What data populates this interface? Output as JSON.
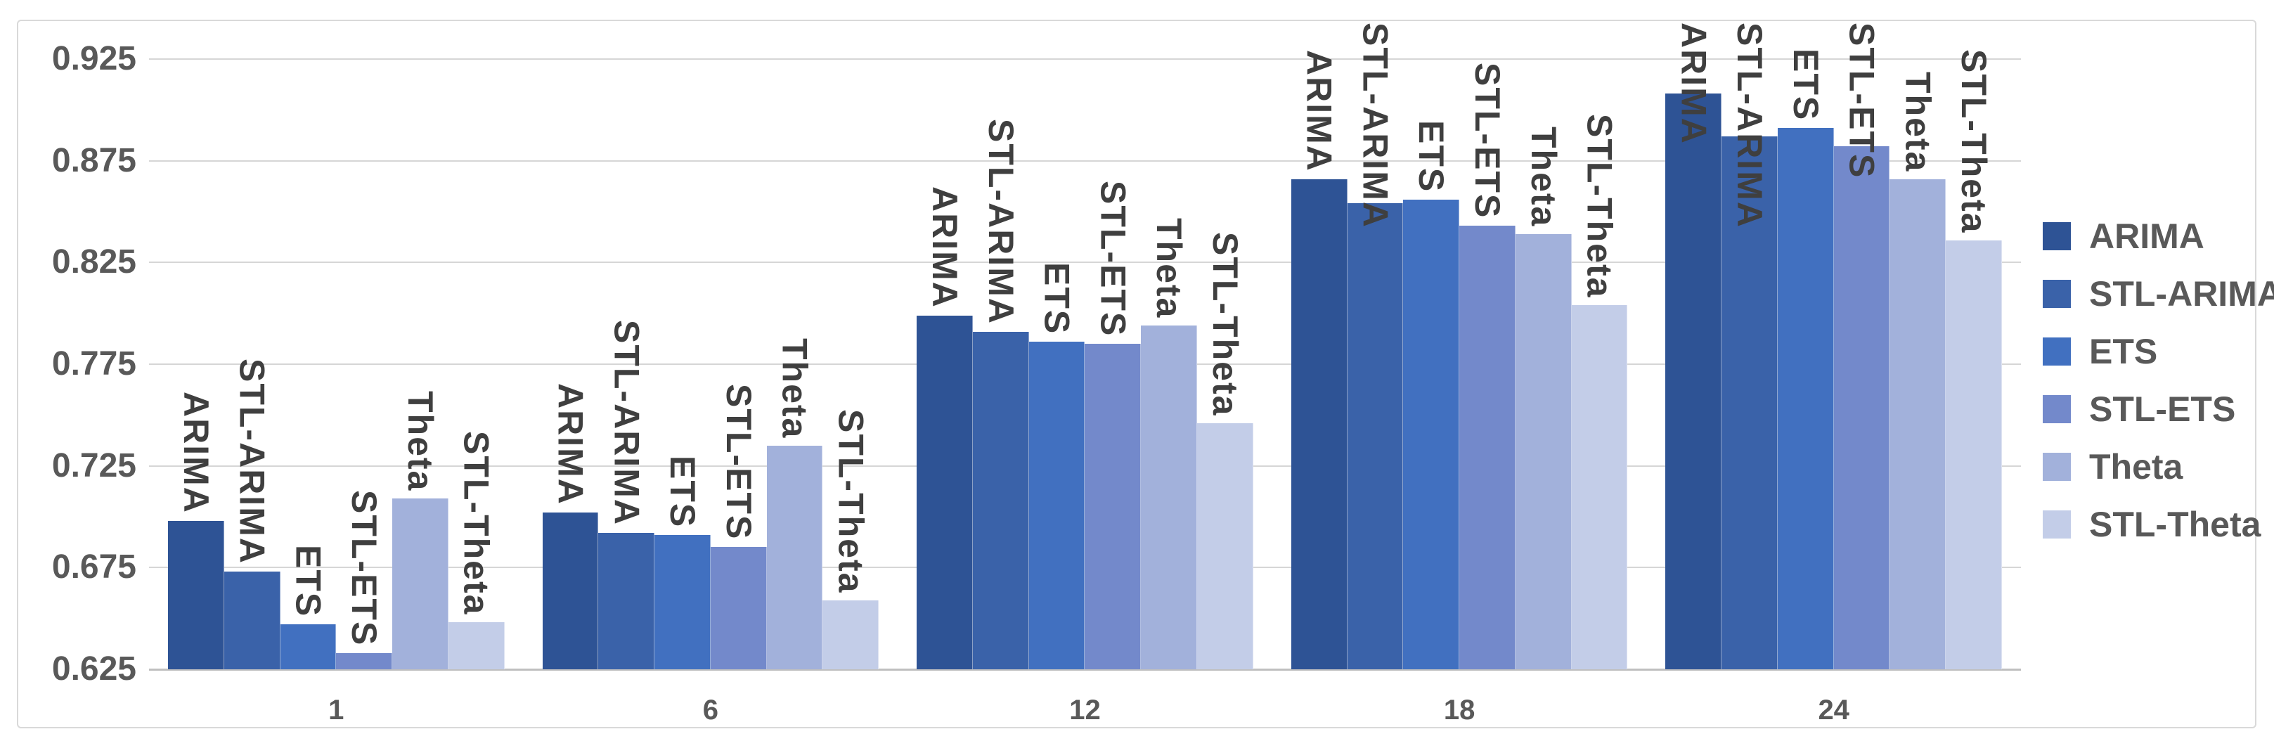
{
  "chart_data": {
    "type": "bar",
    "title": "",
    "xlabel": "",
    "ylabel": "",
    "categories": [
      "1",
      "6",
      "12",
      "18",
      "24"
    ],
    "series": [
      {
        "name": "ARIMA",
        "color": "#2E5395",
        "values": [
          0.698,
          0.702,
          0.799,
          0.866,
          0.908
        ]
      },
      {
        "name": "STL-ARIMA",
        "color": "#3A62A9",
        "values": [
          0.673,
          0.692,
          0.791,
          0.854,
          0.887
        ]
      },
      {
        "name": "ETS",
        "color": "#4170C0",
        "values": [
          0.647,
          0.691,
          0.786,
          0.856,
          0.891
        ]
      },
      {
        "name": "STL-ETS",
        "color": "#7389CB",
        "values": [
          0.633,
          0.685,
          0.785,
          0.843,
          0.882
        ]
      },
      {
        "name": "Theta",
        "color": "#A2B1DB",
        "values": [
          0.709,
          0.735,
          0.794,
          0.839,
          0.866
        ]
      },
      {
        "name": "STL-Theta",
        "color": "#C3CDE8",
        "values": [
          0.648,
          0.659,
          0.746,
          0.804,
          0.836
        ]
      }
    ],
    "y_tick_labels": [
      "0.925",
      "0.875",
      "0.825",
      "0.775",
      "0.725",
      "0.675",
      "0.625"
    ],
    "y_ticks": [
      0.925,
      0.875,
      0.825,
      0.775,
      0.725,
      0.675,
      0.625
    ],
    "ylim": [
      0.625,
      0.925
    ],
    "grid": true,
    "legend_position": "right",
    "bar_labels": "series name shown vertically (rotated 90°) above each bar"
  },
  "colors": {
    "axis_text": "#595959",
    "bar_label_text": "#3F3F3F",
    "gridline": "#D6D6D6",
    "axis_line": "#BFBFBF",
    "chart_border": "#D9D9D9",
    "background": "#FFFFFF"
  }
}
